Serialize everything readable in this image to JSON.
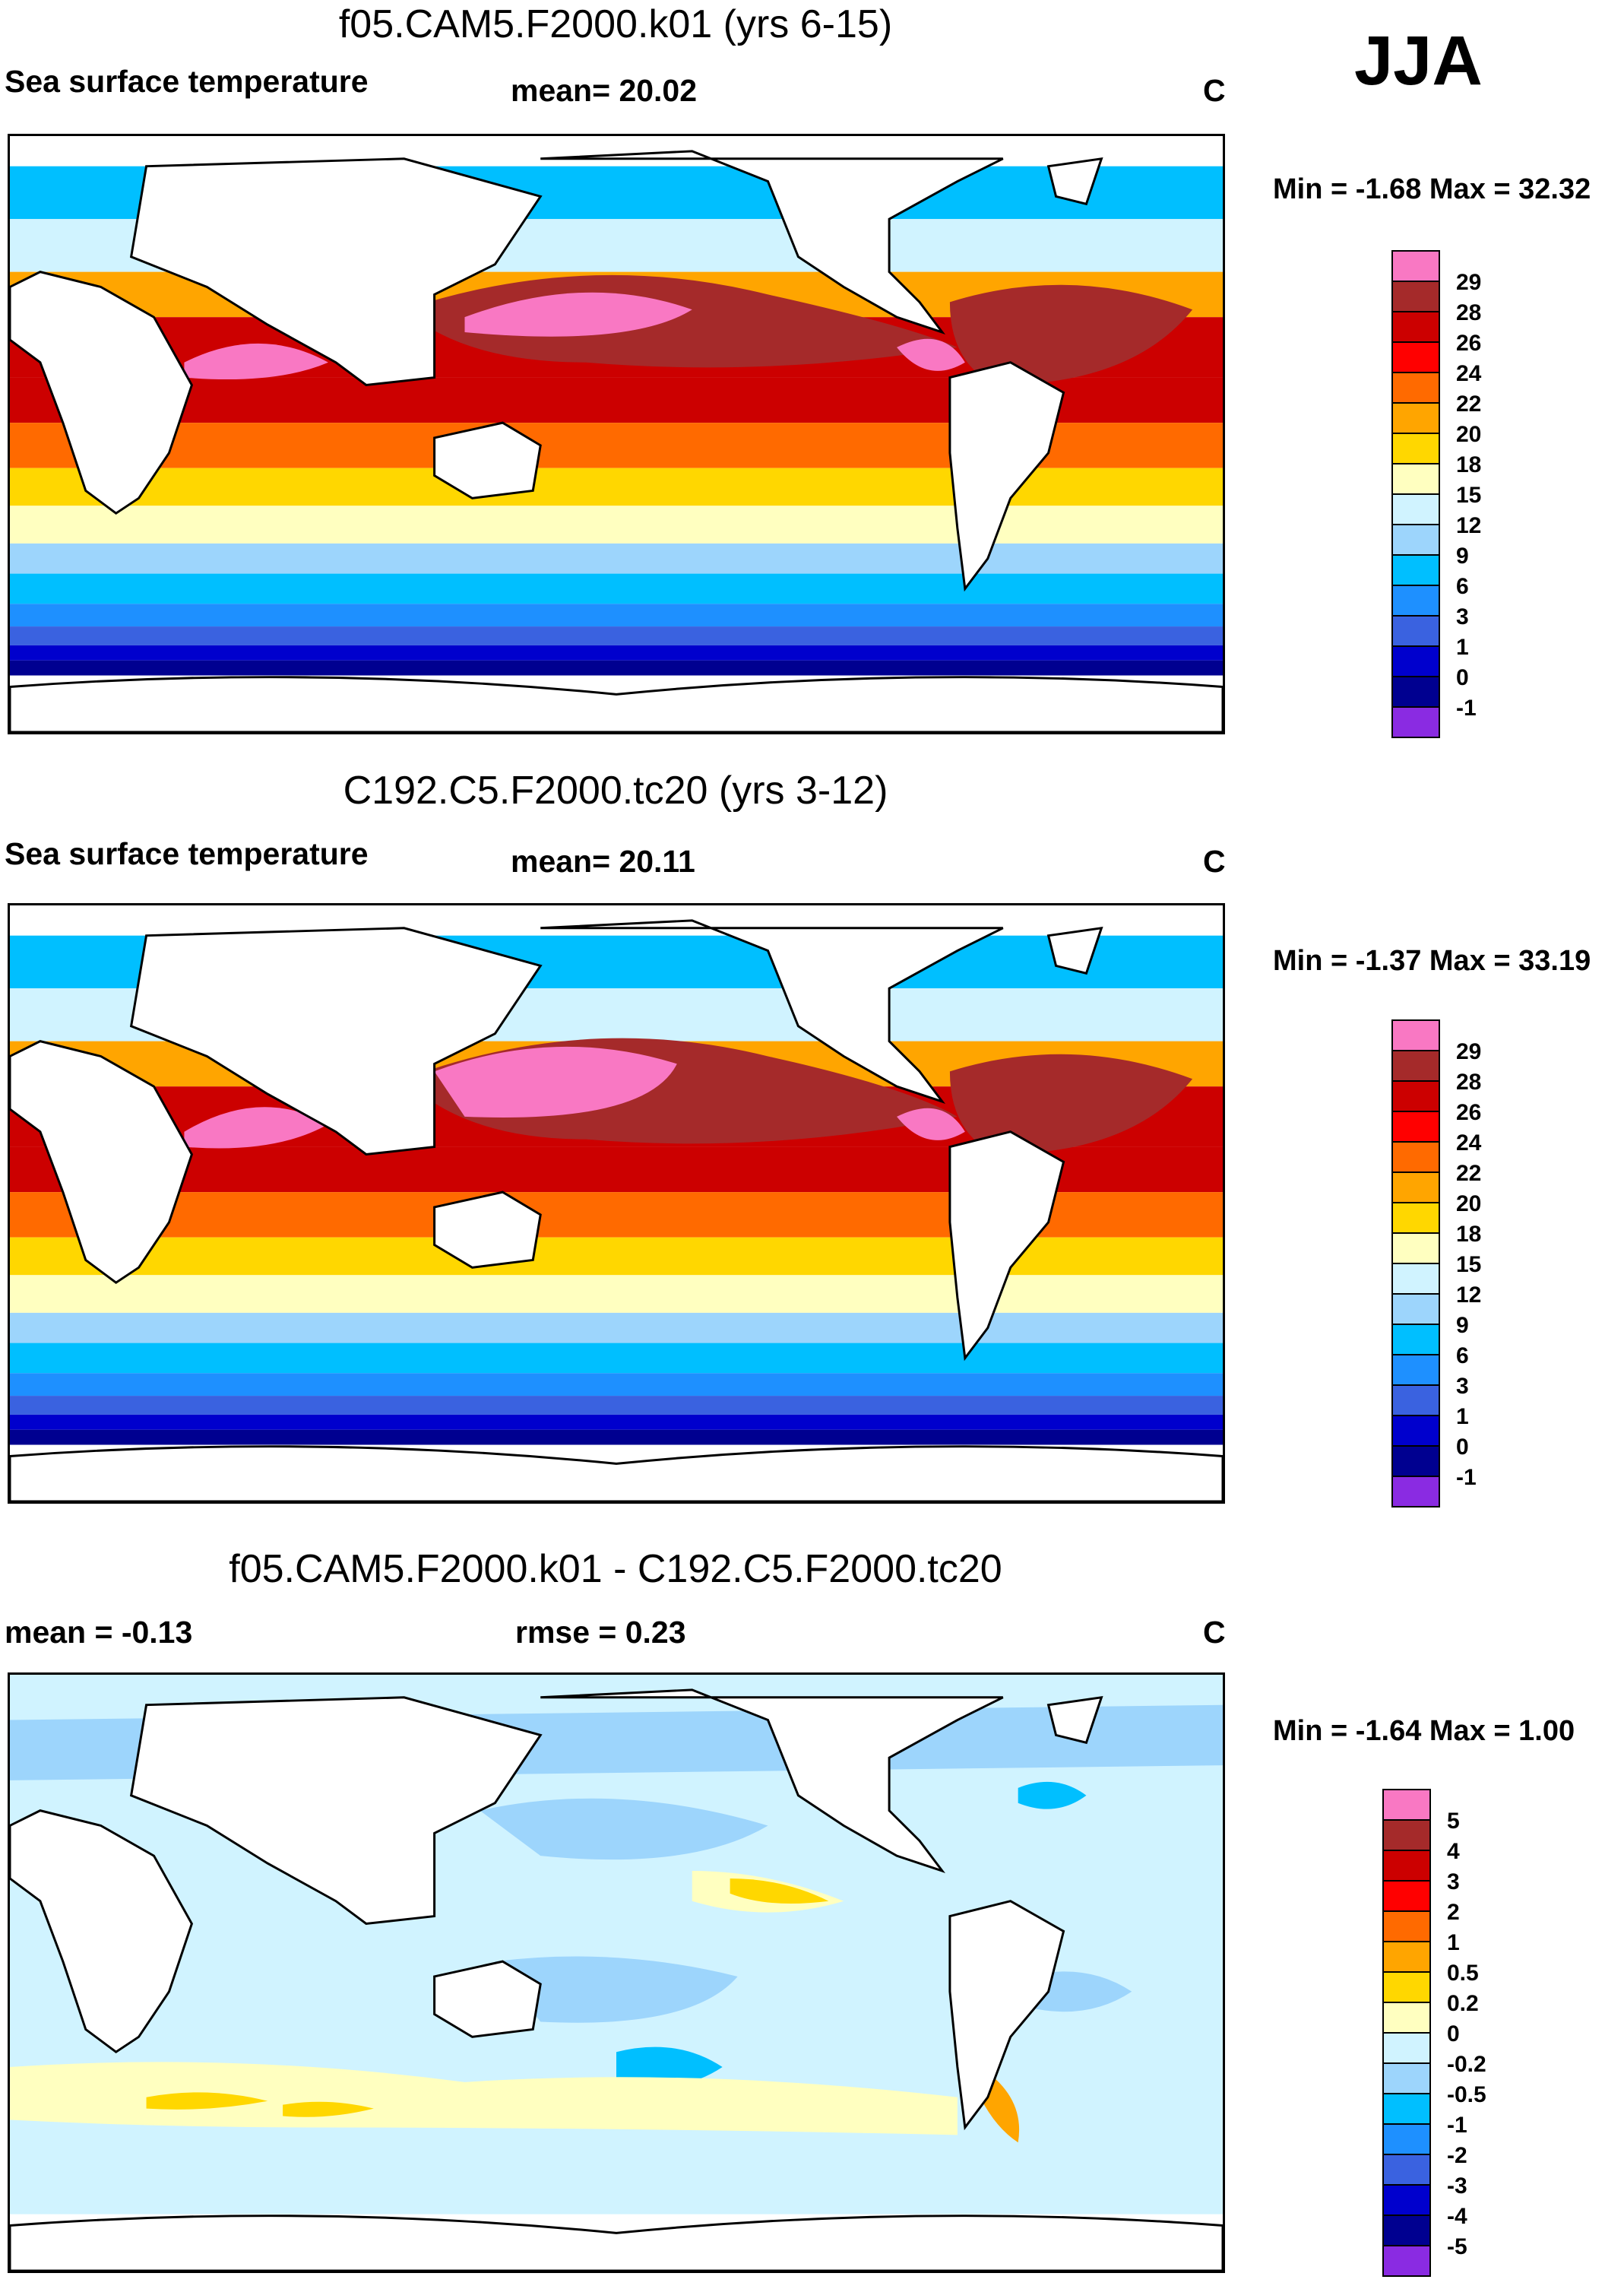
{
  "season": "JJA",
  "units": "C",
  "panels": [
    {
      "id": "p1",
      "title": "f05.CAM5.F2000.k01 (yrs 6-15)",
      "variable": "Sea surface temperature",
      "stat1": "mean=  20.02",
      "stat2": "",
      "minmax": "Min =  -1.68 Max =  32.32",
      "levels": [
        "29",
        "28",
        "26",
        "24",
        "22",
        "20",
        "18",
        "15",
        "12",
        "9",
        "6",
        "3",
        "1",
        "0",
        "-1"
      ],
      "colors": [
        "#f978c3",
        "#a52a2a",
        "#cc0000",
        "#ff0000",
        "#ff6a00",
        "#ffa500",
        "#ffd700",
        "#ffffc0",
        "#d0f3ff",
        "#9dd5fc",
        "#00bfff",
        "#1e90ff",
        "#3a62e0",
        "#0000cd",
        "#000090",
        "#8a2be2"
      ]
    },
    {
      "id": "p2",
      "title": "C192.C5.F2000.tc20 (yrs 3-12)",
      "variable": "Sea surface temperature",
      "stat1": "mean=  20.11",
      "stat2": "",
      "minmax": "Min =  -1.37 Max =  33.19",
      "levels": [
        "29",
        "28",
        "26",
        "24",
        "22",
        "20",
        "18",
        "15",
        "12",
        "9",
        "6",
        "3",
        "1",
        "0",
        "-1"
      ],
      "colors": [
        "#f978c3",
        "#a52a2a",
        "#cc0000",
        "#ff0000",
        "#ff6a00",
        "#ffa500",
        "#ffd700",
        "#ffffc0",
        "#d0f3ff",
        "#9dd5fc",
        "#00bfff",
        "#1e90ff",
        "#3a62e0",
        "#0000cd",
        "#000090",
        "#8a2be2"
      ]
    },
    {
      "id": "p3",
      "title": "f05.CAM5.F2000.k01 - C192.C5.F2000.tc20",
      "variable": "mean =  -0.13",
      "stat1": "rmse =   0.23",
      "stat2": "",
      "minmax": "Min =  -1.64 Max =   1.00",
      "levels": [
        "5",
        "4",
        "3",
        "2",
        "1",
        "0.5",
        "0.2",
        "0",
        "-0.2",
        "-0.5",
        "-1",
        "-2",
        "-3",
        "-4",
        "-5"
      ],
      "colors": [
        "#f978c3",
        "#a52a2a",
        "#cc0000",
        "#ff0000",
        "#ff6a00",
        "#ffa500",
        "#ffd700",
        "#ffffc0",
        "#d0f3ff",
        "#9dd5fc",
        "#00bfff",
        "#1e90ff",
        "#3a62e0",
        "#0000cd",
        "#000090",
        "#8a2be2"
      ]
    }
  ]
}
